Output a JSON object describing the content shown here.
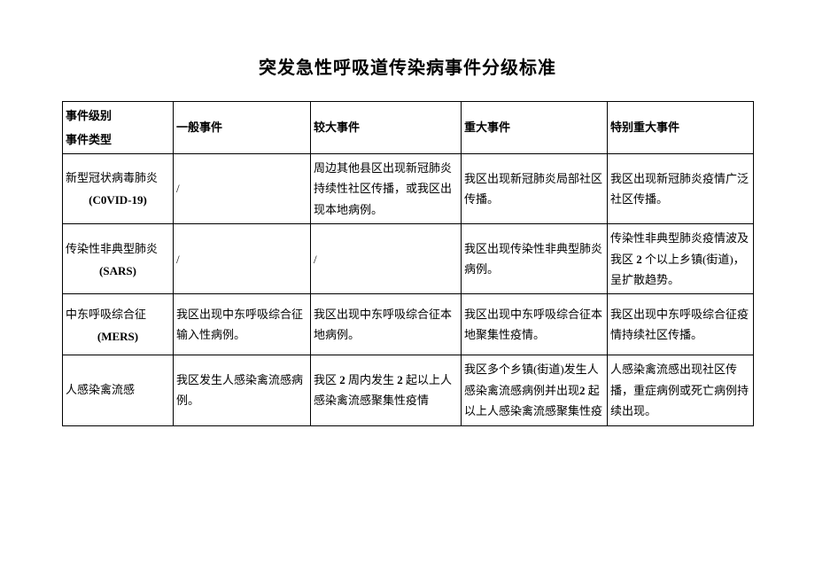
{
  "title": "突发急性呼吸道传染病事件分级标准",
  "header": {
    "event_level": "事件级别",
    "event_type": "事件类型",
    "levels": [
      "一般事件",
      "较大事件",
      "重大事件",
      "特别重大事件"
    ]
  },
  "rows": [
    {
      "name_cn": "新型冠状病毒肺炎",
      "name_en": "(C0VID-19)",
      "cells": [
        "/",
        "周边其他县区出现新冠肺炎持续性社区传播，或我区出现本地病例。",
        "我区出现新冠肺炎局部社区传播。",
        "我区出现新冠肺炎疫情广泛社区传播。"
      ]
    },
    {
      "name_cn": "传染性非典型肺炎",
      "name_en": "(SARS)",
      "cells": [
        "/",
        "/",
        "我区出现传染性非典型肺炎病例。",
        "传染性非典型肺炎疫情波及我区 2 个以上乡镇(街道)，呈扩散趋势。"
      ]
    },
    {
      "name_cn": "中东呼吸综合征",
      "name_en": "(MERS)",
      "cells": [
        "我区出现中东呼吸综合征输入性病例。",
        "我区出现中东呼吸综合征本地病例。",
        "我区出现中东呼吸综合征本地聚集性疫情。",
        "我区出现中东呼吸综合征疫情持续社区传播。"
      ]
    },
    {
      "name_cn": "人感染禽流感",
      "name_en": "",
      "cells": [
        "我区发生人感染禽流感病例。",
        "我区 2 周内发生 2 起以上人感染禽流感聚集性疫情",
        "我区多个乡镇(街道)发生人感染禽流感病例并出现2 起以上人感染禽流感聚集性疫",
        "人感染禽流感出现社区传播，重症病例或死亡病例持续出现。"
      ]
    }
  ],
  "style": {
    "background": "#ffffff",
    "border": "#000000",
    "text": "#000000",
    "title_fontsize": 20,
    "cell_fontsize": 13
  }
}
